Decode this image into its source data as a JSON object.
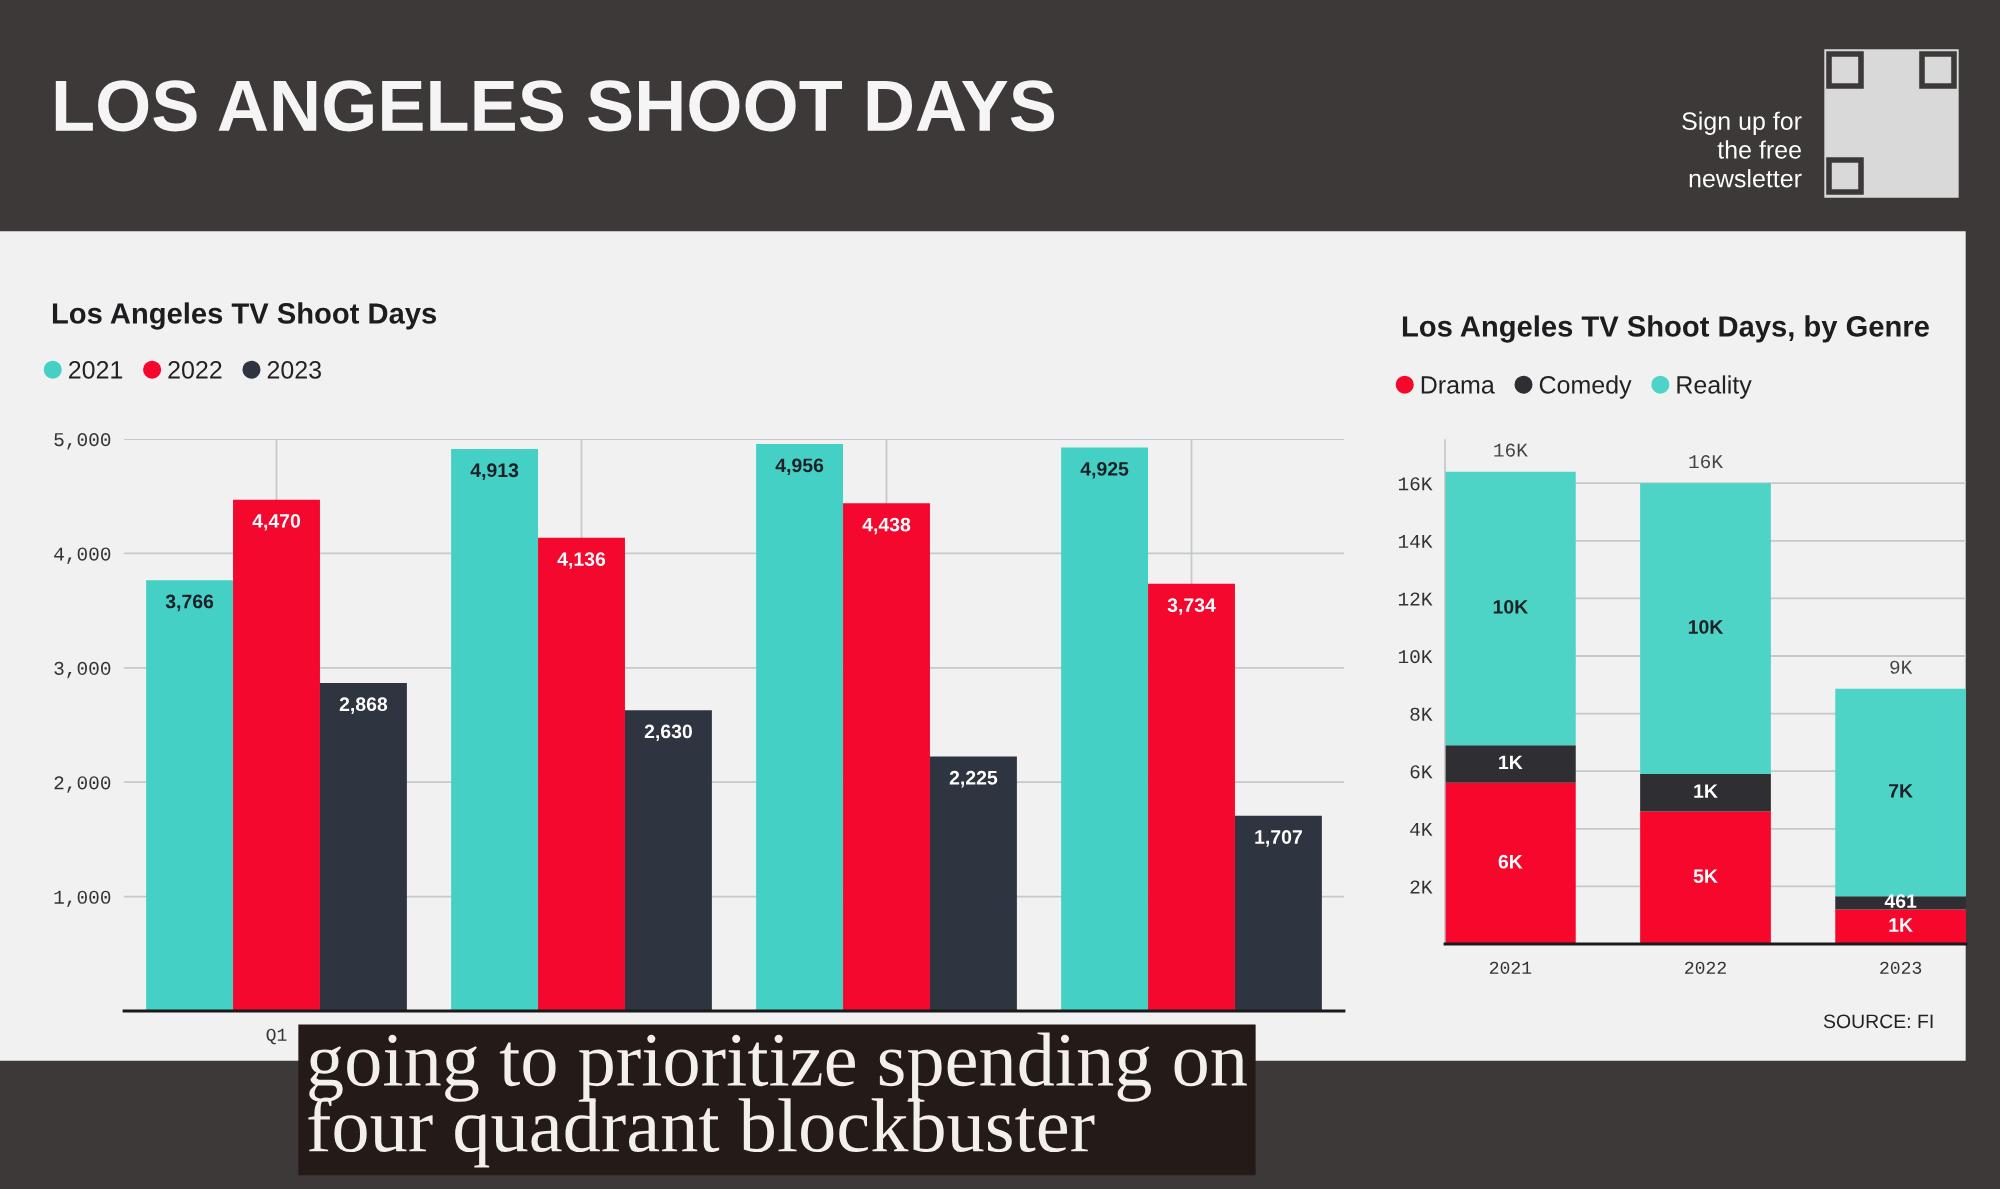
{
  "chart_data": [
    {
      "type": "other",
      "title": "LOS ANGELES SHOOT DAYS",
      "annotations": [
        "Sign up for\nthe free\nnewsletter",
        "going to prioritize spending on\nfour quadrant blockbuster"
      ]
    },
    {
      "type": "bar",
      "title": "Los Angeles TV Shoot Days",
      "categories": [
        "Q1",
        null,
        null,
        null
      ],
      "series": [
        {
          "name": "2021",
          "color": "#45d0c6",
          "values": [
            3766,
            4913,
            4956,
            4925
          ],
          "value_labels": [
            "3,766",
            "4,913",
            "4,956",
            "4,925"
          ]
        },
        {
          "name": "2022",
          "color": "#f5082e",
          "values": [
            4470,
            4136,
            4438,
            3734
          ],
          "value_labels": [
            "4,470",
            "4,136",
            "4,438",
            "3,734"
          ]
        },
        {
          "name": "2023",
          "color": "#2f3540",
          "values": [
            2868,
            2630,
            2225,
            1707
          ],
          "value_labels": [
            "2,868",
            "2,630",
            "2,225",
            "1,707"
          ]
        }
      ],
      "ylim": [
        0,
        5000
      ],
      "yticks": [
        {
          "value": 1000,
          "label": "1,000"
        },
        {
          "value": 2000,
          "label": "2,000"
        },
        {
          "value": 3000,
          "label": "3,000"
        },
        {
          "value": 4000,
          "label": "4,000"
        },
        {
          "value": 5000,
          "label": "5,000"
        }
      ],
      "grid": true,
      "legend": "top left"
    },
    {
      "type": "bar",
      "stacked": true,
      "title": "Los Angeles TV Shoot Days, by Genre",
      "categories": [
        "2021",
        "2022",
        "2023"
      ],
      "series": [
        {
          "name": "Drama",
          "color": "#f7072b",
          "values": [
            5600,
            4600,
            1200
          ],
          "value_labels": [
            "6K",
            "5K",
            "1K"
          ]
        },
        {
          "name": "Comedy",
          "color": "#2e2e33",
          "values": [
            1300,
            1300,
            461
          ],
          "value_labels": [
            "1K",
            "1K",
            "461"
          ]
        },
        {
          "name": "Reality",
          "color": "#4dd4c6",
          "values": [
            9500,
            10100,
            7200
          ],
          "value_labels": [
            "10K",
            "10K",
            "7K"
          ]
        }
      ],
      "totals": [
        "16K",
        "16K",
        "9K"
      ],
      "ylim": [
        0,
        17500
      ],
      "yticks": [
        {
          "value": 2000,
          "label": "2K"
        },
        {
          "value": 4000,
          "label": "4K"
        },
        {
          "value": 6000,
          "label": "6K"
        },
        {
          "value": 8000,
          "label": "8K"
        },
        {
          "value": 10000,
          "label": "10K"
        },
        {
          "value": 12000,
          "label": "12K"
        },
        {
          "value": 14000,
          "label": "14K"
        },
        {
          "value": 16000,
          "label": "16K"
        }
      ],
      "grid": "y",
      "legend": "top left",
      "annotations": [
        "SOURCE: FI"
      ]
    }
  ]
}
